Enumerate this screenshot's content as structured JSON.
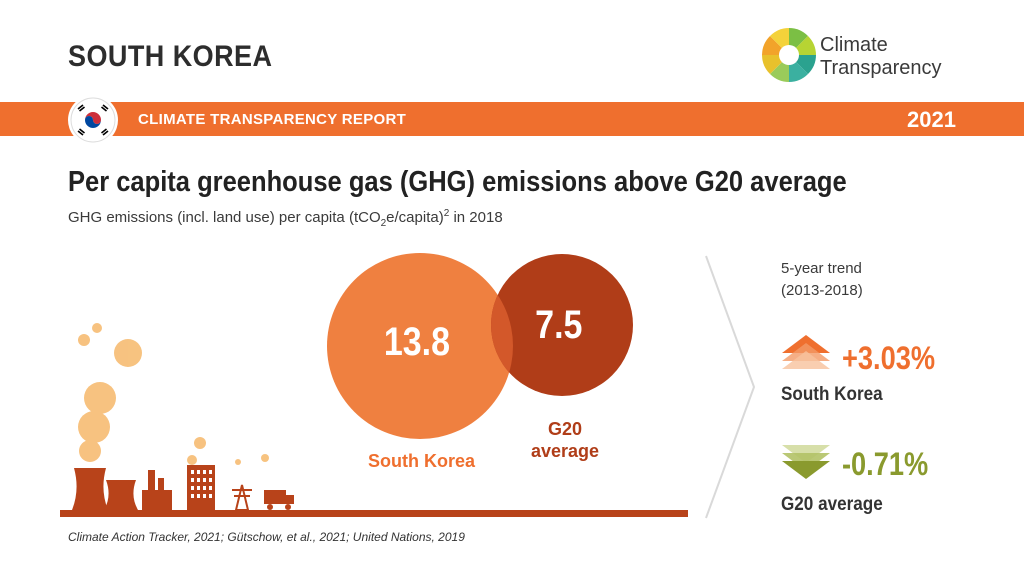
{
  "header": {
    "country": "SOUTH KOREA",
    "logo_line1": "Climate",
    "logo_line2": "Transparency"
  },
  "band": {
    "title": "CLIMATE TRANSPARENCY REPORT",
    "year": "2021"
  },
  "main": {
    "title": "Per capita greenhouse gas (GHG) emissions above G20 average",
    "subtitle_pre": "GHG emissions (incl. land use) per capita (tCO",
    "subtitle_sub": "2",
    "subtitle_mid": "e/capita)",
    "subtitle_sup": "2",
    "subtitle_post": " in 2018"
  },
  "comparison": {
    "south_korea_value": "13.8",
    "south_korea_label": "South Korea",
    "g20_value": "7.5",
    "g20_label_line1": "G20",
    "g20_label_line2": "average"
  },
  "trend": {
    "heading_line1": "5-year trend",
    "heading_line2": "(2013-2018)",
    "south_korea_change": "+3.03%",
    "south_korea_name": "South Korea",
    "g20_change": "-0.71%",
    "g20_name": "G20 average"
  },
  "source": "Climate Action Tracker, 2021; Gütschow, et al., 2021; United Nations, 2019",
  "colors": {
    "orange": "#ef6f2e",
    "light_orange": "#ef8040",
    "dark_red": "#b03d18",
    "olive": "#8a9a2e",
    "factory": "#b8431a"
  }
}
